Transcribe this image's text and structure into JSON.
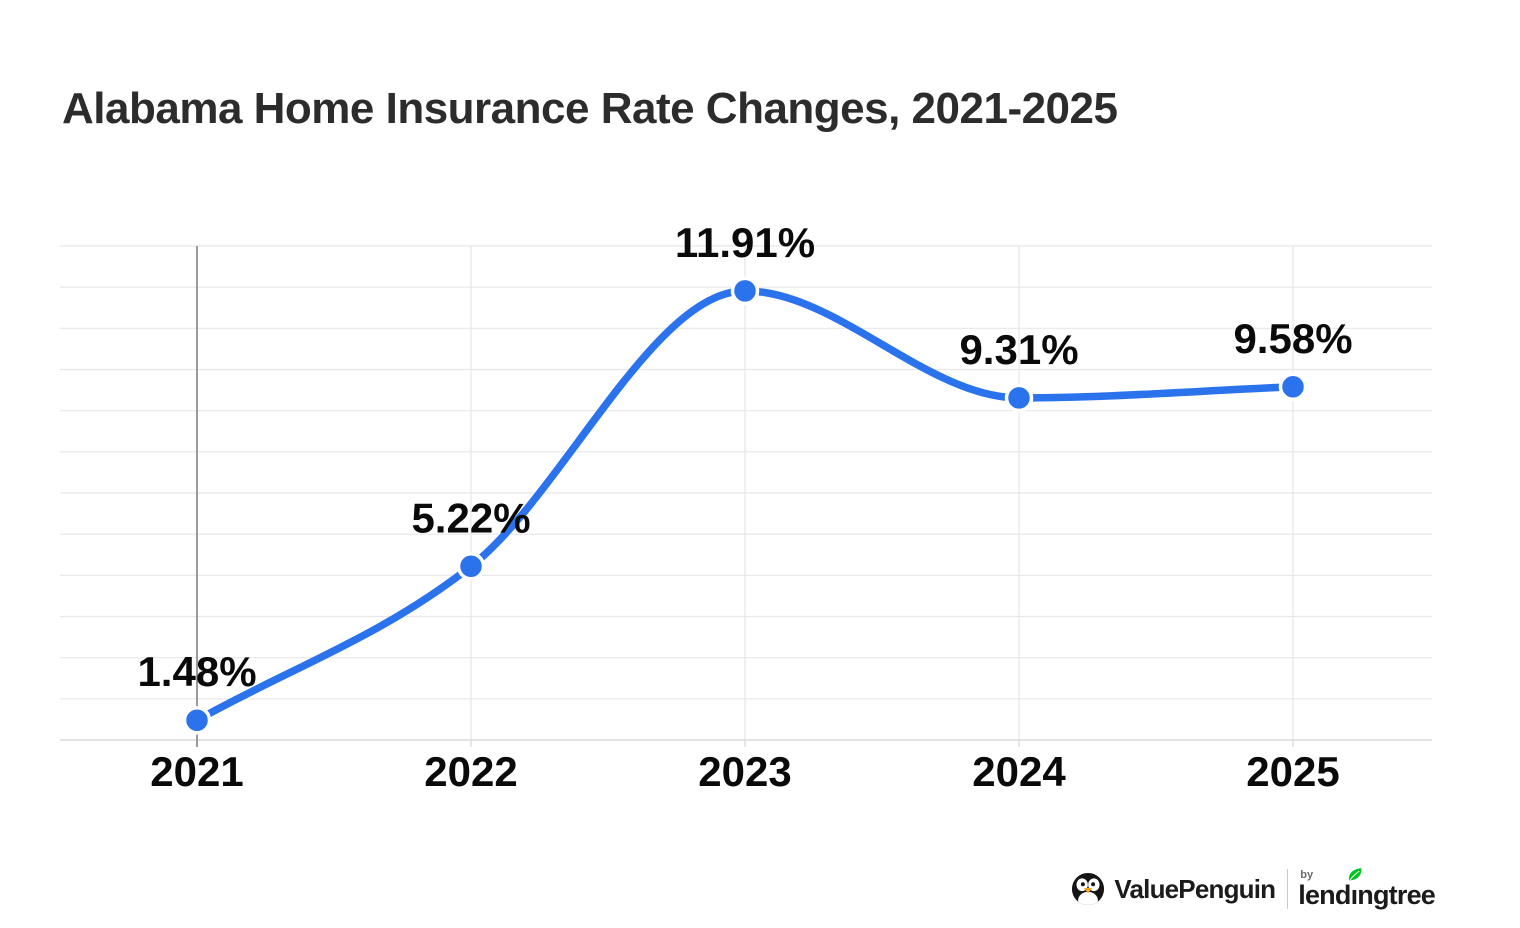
{
  "chart": {
    "title": "Alabama Home Insurance Rate Changes, 2021-2025"
  },
  "chart_data": {
    "type": "line",
    "title": "Alabama Home Insurance Rate Changes, 2021-2025",
    "categories": [
      "2021",
      "2022",
      "2023",
      "2024",
      "2025"
    ],
    "values": [
      1.48,
      5.22,
      11.91,
      9.31,
      9.58
    ],
    "point_labels": [
      "1.48%",
      "5.22%",
      "11.91%",
      "9.31%",
      "9.58%"
    ],
    "unit": "%",
    "xlabel": "",
    "ylabel": "",
    "ylim": [
      1,
      13
    ],
    "grid": "horizontal gridlines every 1%, vertical gridline per year, darker axis line at 2021",
    "legend": "none",
    "line_color": "#2b73ec",
    "point_color": "#2b73ec",
    "point_ring_color": "#ffffff",
    "label_color": "#0a0a0a",
    "gridline_color": "#e7e7e7",
    "baseline_color": "#d9d9d9",
    "axis_2021_color": "#909090",
    "tick_color": "#d4d4d4"
  },
  "footer": {
    "brand1": "ValuePenguin",
    "by": "by",
    "brand2": "lendingtree",
    "brand2_parts": {
      "pre": "lend",
      "i": "ı",
      "post": "ngtree"
    },
    "leaf_color": "#00c223",
    "penguin_body_color": "#151515",
    "penguin_beak_color": "#f2a51f",
    "divider_color": "#c9c9c9"
  }
}
